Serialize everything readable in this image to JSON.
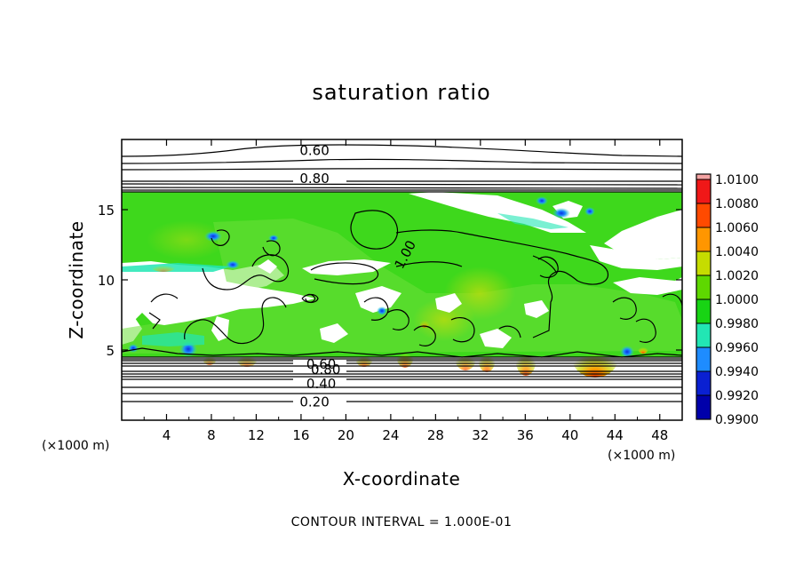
{
  "chart_data": {
    "type": "heatmap",
    "title": "saturation ratio",
    "xlabel": "X-coordinate",
    "ylabel": "Z-coordinate",
    "x_unit": "(×1000 m)",
    "z_unit": "(×1000 m)",
    "xlim": [
      0,
      50
    ],
    "ylim": [
      0,
      20
    ],
    "x_ticks": [
      4,
      8,
      12,
      16,
      20,
      24,
      28,
      32,
      36,
      40,
      44,
      48
    ],
    "y_ticks": [
      5,
      10,
      15
    ],
    "colorbar": {
      "levels": [
        "1.0100",
        "1.0080",
        "1.0060",
        "1.0040",
        "1.0020",
        "1.0000",
        "0.9980",
        "0.9960",
        "0.9940",
        "0.9920",
        "0.9900"
      ],
      "colors": [
        "#f4a3a3",
        "#f01818",
        "#ff4a00",
        "#ff9600",
        "#c6dc00",
        "#5ed800",
        "#18d414",
        "#22e6b4",
        "#1e8cff",
        "#0a20d2",
        "#0000aa",
        "#5a0096"
      ]
    },
    "contour_labels": [
      {
        "text": "0.60",
        "x": 17.2,
        "z": 19.2
      },
      {
        "text": "0.80",
        "x": 17.2,
        "z": 17.2
      },
      {
        "text": "1.00",
        "x": 25.3,
        "z": 11.8
      },
      {
        "text": "0.60",
        "x": 17.8,
        "z": 4.0
      },
      {
        "text": "0.80",
        "x": 18.2,
        "z": 3.6
      },
      {
        "text": "0.40",
        "x": 17.8,
        "z": 2.6
      },
      {
        "text": "0.20",
        "x": 17.2,
        "z": 1.3
      }
    ],
    "footer": "CONTOUR INTERVAL = 1.000E-01"
  }
}
